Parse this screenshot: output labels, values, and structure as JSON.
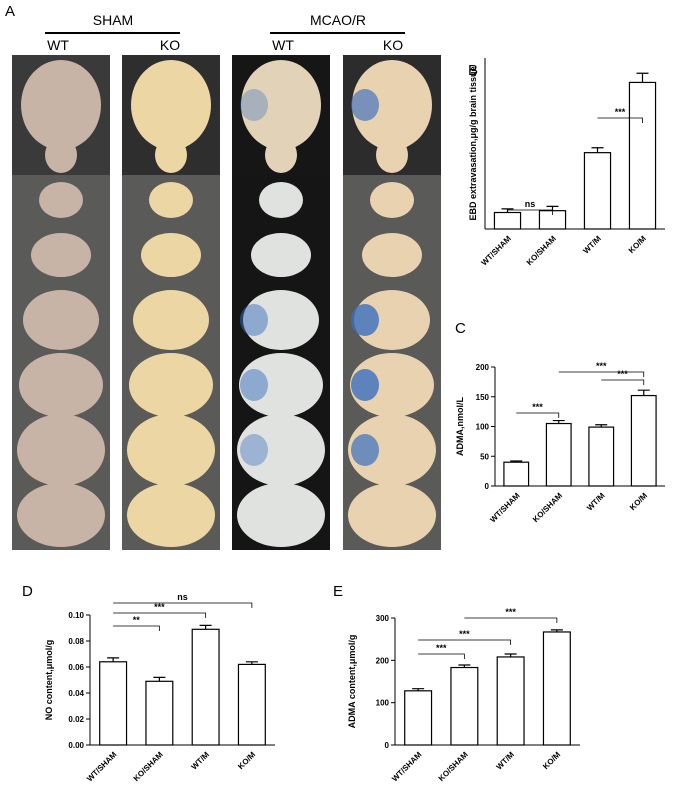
{
  "panel_a": {
    "label": "A",
    "groups": [
      "SHAM",
      "MCAO/R"
    ],
    "columns": [
      "WT",
      "KO",
      "WT",
      "KO"
    ]
  },
  "chart_data": [
    {
      "type": "bar",
      "panel": "B",
      "y_label": "EBD extravasation,μg/g brain tissue",
      "categories": [
        "WT/SHAM",
        "KO/SHAM",
        "WT/M",
        "KO/M"
      ],
      "values": [
        0.27,
        0.3,
        1.25,
        2.4
      ],
      "errors": [
        0.06,
        0.07,
        0.08,
        0.15
      ],
      "ylim": [
        0,
        2.8
      ],
      "color": "#ffffff",
      "annotations": [
        "ns",
        "***"
      ]
    },
    {
      "type": "bar",
      "panel": "C",
      "y_label": "ADMA,nmol/L",
      "categories": [
        "WT/SHAM",
        "KO/SHAM",
        "WT/M",
        "KO/M"
      ],
      "values": [
        40,
        105,
        99,
        152
      ],
      "errors": [
        2,
        5,
        4,
        9
      ],
      "ylim": [
        0,
        200
      ],
      "yticks": [
        0,
        50,
        100,
        150,
        200
      ],
      "color": "#ffffff",
      "annotations": [
        "***",
        "***",
        "***"
      ]
    },
    {
      "type": "bar",
      "panel": "D",
      "y_label": "NO content,μmol/g",
      "categories": [
        "WT/SHAM",
        "KO/SHAM",
        "WT/M",
        "KO/M"
      ],
      "values": [
        0.064,
        0.049,
        0.089,
        0.062
      ],
      "errors": [
        0.003,
        0.003,
        0.003,
        0.002
      ],
      "ylim": [
        0,
        0.1
      ],
      "yticks": [
        {
          "value": 0,
          "label": "0.00"
        },
        {
          "value": 0.02,
          "label": "0.02"
        },
        {
          "value": 0.04,
          "label": "0.04"
        },
        {
          "value": 0.06,
          "label": "0.06"
        },
        {
          "value": 0.08,
          "label": "0.08"
        },
        {
          "value": 0.1,
          "label": "0.10"
        }
      ],
      "color": "#ffffff",
      "annotations": [
        "**",
        "***",
        "ns"
      ]
    },
    {
      "type": "bar",
      "panel": "E",
      "y_label": "ADMA content,μmol/g",
      "categories": [
        "WT/SHAM",
        "KO/SHAM",
        "WT/M",
        "KO/M"
      ],
      "values": [
        128,
        183,
        208,
        267
      ],
      "errors": [
        5,
        6,
        7,
        5
      ],
      "ylim": [
        0,
        300
      ],
      "yticks": [
        0,
        100,
        200,
        300
      ],
      "color": "#ffffff",
      "annotations": [
        "***",
        "***",
        "***"
      ]
    }
  ]
}
